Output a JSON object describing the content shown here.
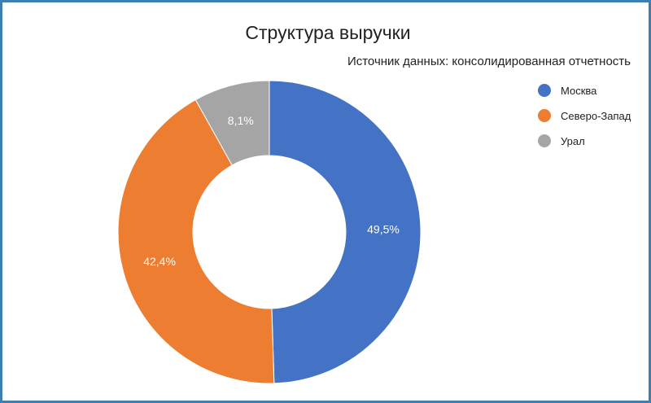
{
  "chart_data": {
    "type": "pie",
    "donut": true,
    "title": "Структура выручки",
    "subtitle": "Источник данных: консолидированная отчетность",
    "categories": [
      "Москва",
      "Северо-Запад",
      "Урал"
    ],
    "values": [
      49.5,
      42.4,
      8.1
    ],
    "data_labels": [
      "49,5%",
      "42,4%",
      "8,1%"
    ],
    "colors": [
      "#4472c4",
      "#ed7d31",
      "#a5a5a5"
    ],
    "legend_position": "right"
  }
}
